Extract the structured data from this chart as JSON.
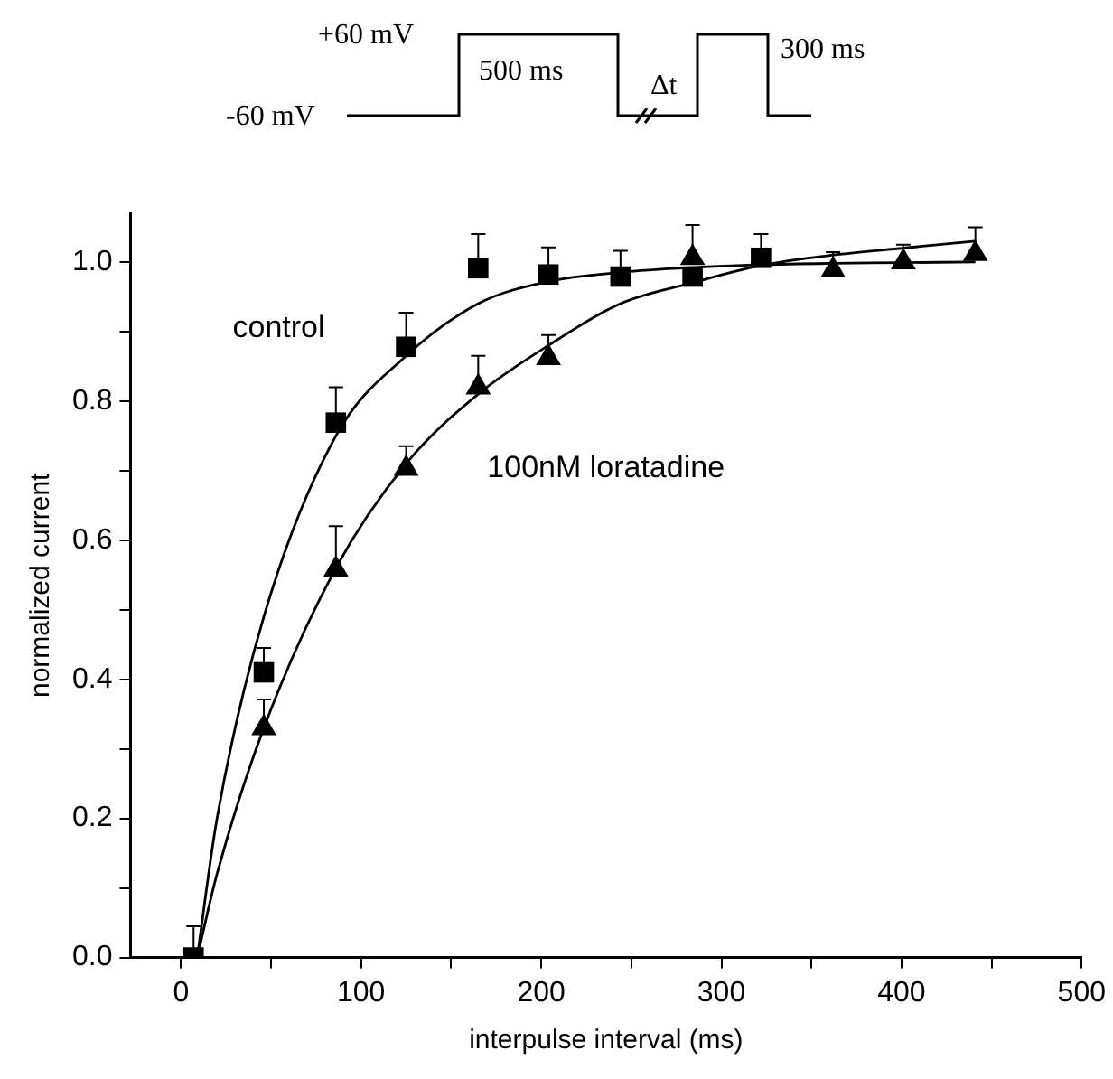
{
  "chart_data": {
    "type": "scatter",
    "xlabel": "interpulse interval (ms)",
    "ylabel": "normalized current",
    "xlim": [
      -28,
      500
    ],
    "xticks": [
      0,
      {
        "value": 50,
        "label": null
      },
      100,
      {
        "value": 150,
        "label": null
      },
      200,
      {
        "value": 250,
        "label": null
      },
      300,
      {
        "value": 350,
        "label": null
      },
      400,
      {
        "value": 450,
        "label": null
      },
      500
    ],
    "ylim": [
      0,
      1.07
    ],
    "yticks": [
      {
        "value": 0,
        "label": "0.0"
      },
      {
        "value": 0.1,
        "label": null
      },
      {
        "value": 0.2,
        "label": "0.2"
      },
      {
        "value": 0.3,
        "label": null
      },
      {
        "value": 0.4,
        "label": "0.4"
      },
      {
        "value": 0.5,
        "label": null
      },
      {
        "value": 0.6,
        "label": "0.6"
      },
      {
        "value": 0.7,
        "label": null
      },
      {
        "value": 0.8,
        "label": "0.8"
      },
      {
        "value": 0.9,
        "label": null
      },
      {
        "value": 1,
        "label": "1.0"
      }
    ],
    "grid": false,
    "legend": false,
    "annotations": [
      "+60 mV",
      "-60 mV",
      "500 ms",
      "Δt",
      "300 ms"
    ],
    "series": [
      {
        "name": "control",
        "color": "#000000",
        "marker": "square",
        "x": [
          7,
          46,
          86,
          125,
          165,
          204,
          244,
          284,
          322
        ],
        "values": [
          0,
          0.41,
          0.769,
          0.878,
          0.991,
          0.982,
          0.979,
          0.979,
          1.006
        ],
        "errors": [
          [
            0,
            0.045
          ],
          [
            0.41,
            0.445
          ],
          [
            0.769,
            0.82
          ],
          [
            0.878,
            0.927
          ],
          [
            0.991,
            1.04
          ],
          [
            0.982,
            1.021
          ],
          [
            0.979,
            1.016
          ],
          null,
          [
            1.006,
            1.04
          ]
        ]
      },
      {
        "name": "100nM loratadine",
        "color": "#000000",
        "marker": "triangle",
        "x": [
          46,
          86,
          125,
          165,
          204,
          284,
          362,
          401,
          441
        ],
        "values": [
          0.33,
          0.558,
          0.703,
          0.82,
          0.862,
          1.006,
          0.988,
          1,
          1.012
        ],
        "errors": [
          [
            0.33,
            0.371
          ],
          [
            0.558,
            0.62
          ],
          [
            0.703,
            0.735
          ],
          [
            0.82,
            0.865
          ],
          [
            0.862,
            0.895
          ],
          [
            1.006,
            1.053
          ],
          [
            0.988,
            1.014
          ],
          [
            1,
            1.025
          ],
          [
            1.012,
            1.05
          ]
        ]
      },
      {
        "type": "line",
        "color": "#000000",
        "marker": "none",
        "x": [
          9,
          20,
          46,
          86,
          125,
          165,
          204,
          244,
          284,
          322,
          362,
          401,
          441
        ],
        "values": [
          0,
          0.2,
          0.49,
          0.75,
          0.865,
          0.94,
          0.972,
          0.985,
          0.992,
          0.996,
          0.998,
          0.999,
          1
        ]
      },
      {
        "type": "line",
        "color": "#000000",
        "marker": "none",
        "x": [
          9,
          20,
          46,
          86,
          125,
          165,
          204,
          244,
          284,
          322,
          362,
          401,
          441
        ],
        "values": [
          0,
          0.12,
          0.33,
          0.56,
          0.71,
          0.81,
          0.88,
          0.94,
          0.97,
          0.995,
          1.01,
          1.02,
          1.03
        ]
      }
    ]
  }
}
